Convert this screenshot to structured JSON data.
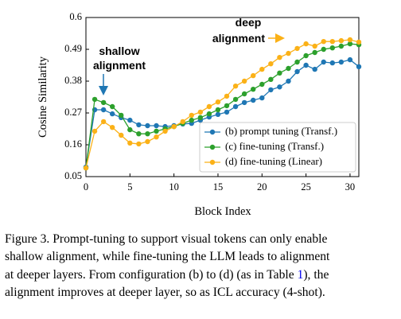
{
  "chart_data": {
    "type": "line",
    "xlabel": "Block Index",
    "ylabel": "Cosine Similarity",
    "x": [
      0,
      1,
      2,
      3,
      4,
      5,
      6,
      7,
      8,
      9,
      10,
      11,
      12,
      13,
      14,
      15,
      16,
      17,
      18,
      19,
      20,
      21,
      22,
      23,
      24,
      25,
      26,
      27,
      28,
      29,
      30,
      31
    ],
    "series": [
      {
        "name": "(b) prompt tuning (Transf.)",
        "color": "#1f77b4",
        "values": [
          0.083,
          0.281,
          0.281,
          0.267,
          0.254,
          0.245,
          0.229,
          0.226,
          0.226,
          0.223,
          0.226,
          0.232,
          0.234,
          0.245,
          0.256,
          0.265,
          0.273,
          0.292,
          0.306,
          0.314,
          0.322,
          0.35,
          0.36,
          0.38,
          0.413,
          0.435,
          0.421,
          0.446,
          0.443,
          0.446,
          0.454,
          0.43
        ]
      },
      {
        "name": "(c) fine-tuning (Transf.)",
        "color": "#2ca02c",
        "values": [
          0.08,
          0.317,
          0.306,
          0.292,
          0.262,
          0.212,
          0.198,
          0.198,
          0.207,
          0.215,
          0.223,
          0.234,
          0.245,
          0.254,
          0.267,
          0.281,
          0.295,
          0.317,
          0.336,
          0.352,
          0.369,
          0.386,
          0.408,
          0.424,
          0.446,
          0.468,
          0.479,
          0.49,
          0.495,
          0.501,
          0.509,
          0.506
        ]
      },
      {
        "name": "(d) fine-tuning (Linear)",
        "color": "#fbb117",
        "values": [
          0.08,
          0.207,
          0.24,
          0.22,
          0.193,
          0.166,
          0.163,
          0.171,
          0.187,
          0.207,
          0.223,
          0.24,
          0.262,
          0.273,
          0.292,
          0.308,
          0.328,
          0.363,
          0.38,
          0.399,
          0.421,
          0.44,
          0.462,
          0.476,
          0.493,
          0.509,
          0.501,
          0.517,
          0.517,
          0.52,
          0.523,
          0.515
        ]
      }
    ],
    "xlim": [
      0,
      31
    ],
    "xticks": [
      0,
      5,
      10,
      15,
      20,
      25,
      30
    ],
    "ylim": [
      0.05,
      0.6
    ],
    "yticks": [
      0.05,
      0.16,
      0.27,
      0.38,
      0.49,
      0.6
    ],
    "grid": false,
    "legend": "lower right",
    "annotations": [
      {
        "lines": [
          "shallow",
          "alignment"
        ],
        "color": "#1f77b4"
      },
      {
        "lines": [
          "deep",
          "alignment"
        ],
        "color": "#fbb117"
      }
    ]
  },
  "caption": {
    "lines": [
      [
        "Figure 3. Prompt-tuning to support visual tokens can only enable"
      ],
      [
        "shallow alignment, while fine-tuning the LLM leads to alignment"
      ],
      [
        "at deeper layers. From configuration (b) to (d) (as in Table ",
        "1",
        "), the"
      ],
      [
        "alignment improves at deeper layer, so as ICL accuracy (4-shot)."
      ]
    ],
    "link_color": "#0000ee"
  }
}
